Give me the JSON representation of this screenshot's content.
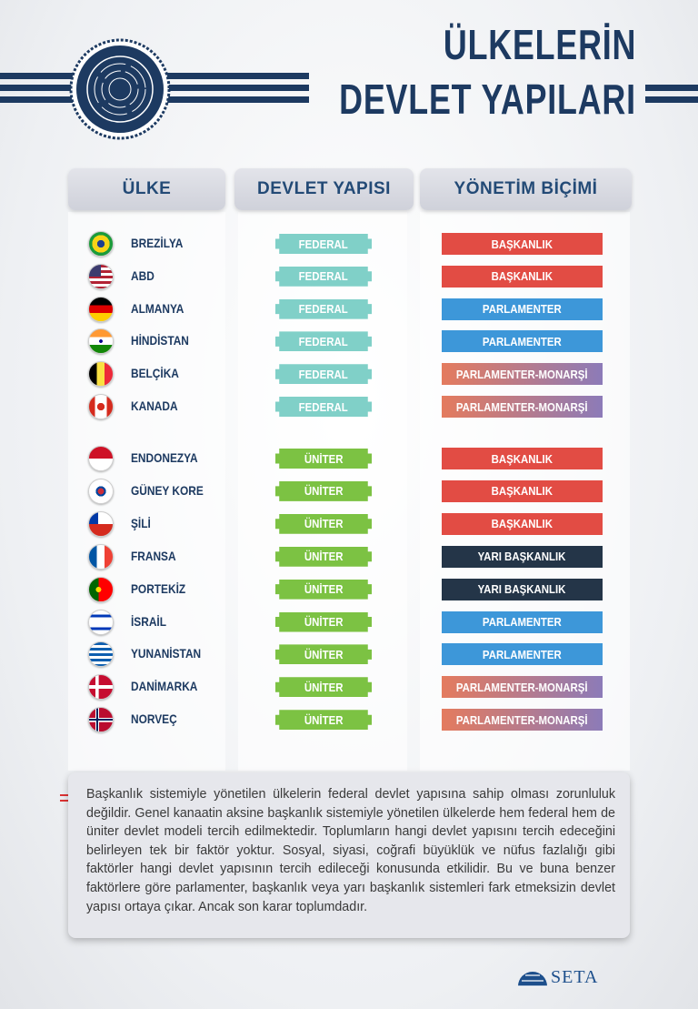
{
  "title": {
    "line1": "ÜLKELERİN",
    "line2": "DEVLET YAPILARI"
  },
  "header": [
    "ÜLKE",
    "DEVLET YAPISI",
    "YÖNETİM BİÇİMİ"
  ],
  "rows": [
    {
      "country": "BREZİLYA",
      "structure": "FEDERAL",
      "structure_color": "#80d0c8",
      "government": "BAŞKANLIK",
      "government_color": "#e24c44"
    },
    {
      "country": "ABD",
      "structure": "FEDERAL",
      "structure_color": "#80d0c8",
      "government": "BAŞKANLIK",
      "government_color": "#e24c44"
    },
    {
      "country": "ALMANYA",
      "structure": "FEDERAL",
      "structure_color": "#80d0c8",
      "government": "PARLAMENTER",
      "government_color": "#3d97d9"
    },
    {
      "country": "HİNDİSTAN",
      "structure": "FEDERAL",
      "structure_color": "#80d0c8",
      "government": "PARLAMENTER",
      "government_color": "#3d97d9"
    },
    {
      "country": "BELÇİKA",
      "structure": "FEDERAL",
      "structure_color": "#80d0c8",
      "government": "PARLAMENTER-MONARŞİ",
      "government_color": "linear-gradient(to right,#e47b5e,#8c7bb8)"
    },
    {
      "country": "KANADA",
      "structure": "FEDERAL",
      "structure_color": "#80d0c8",
      "government": "PARLAMENTER-MONARŞİ",
      "government_color": "linear-gradient(to right,#e47b5e,#8c7bb8)"
    },
    {
      "country": "ENDONEZYA",
      "structure": "ÜNİTER",
      "structure_color": "#7cc243",
      "government": "BAŞKANLIK",
      "government_color": "#e24c44"
    },
    {
      "country": "GÜNEY KORE",
      "structure": "ÜNİTER",
      "structure_color": "#7cc243",
      "government": "BAŞKANLIK",
      "government_color": "#e24c44"
    },
    {
      "country": "ŞİLİ",
      "structure": "ÜNİTER",
      "structure_color": "#7cc243",
      "government": "BAŞKANLIK",
      "government_color": "#e24c44"
    },
    {
      "country": "FRANSA",
      "structure": "ÜNİTER",
      "structure_color": "#7cc243",
      "government": "YARI BAŞKANLIK",
      "government_color": "#243548"
    },
    {
      "country": "PORTEKİZ",
      "structure": "ÜNİTER",
      "structure_color": "#7cc243",
      "government": "YARI BAŞKANLIK",
      "government_color": "#243548"
    },
    {
      "country": "İSRAİL",
      "structure": "ÜNİTER",
      "structure_color": "#7cc243",
      "government": "PARLAMENTER",
      "government_color": "#3d97d9"
    },
    {
      "country": "YUNANİSTAN",
      "structure": "ÜNİTER",
      "structure_color": "#7cc243",
      "government": "PARLAMENTER",
      "government_color": "#3d97d9"
    },
    {
      "country": "DANİMARKA",
      "structure": "ÜNİTER",
      "structure_color": "#7cc243",
      "government": "PARLAMENTER-MONARŞİ",
      "government_color": "linear-gradient(to right,#e47b5e,#8c7bb8)"
    },
    {
      "country": "NORVEÇ",
      "structure": "ÜNİTER",
      "structure_color": "#7cc243",
      "government": "PARLAMENTER-MONARŞİ",
      "government_color": "linear-gradient(to right,#e47b5e,#8c7bb8)"
    }
  ],
  "note": "Başkanlık sistemiyle yönetilen ülkelerin federal devlet yapısına sahip olması zorunluluk değildir. Genel kanaatin aksine başkanlık sistemiyle yönetilen ülkelerde hem federal hem de üniter devlet modeli tercih edilmektedir. Toplumların hangi devlet yapısını tercih edeceğini belirleyen tek bir faktör yoktur. Sosyal, siyasi, coğrafi büyüklük ve nüfus fazlalığı gibi faktörler hangi devlet yapısının tercih edileceği konusunda etkilidir. Bu ve buna benzer faktörlere göre parlamenter, başkanlık veya yarı başkanlık sistemleri fark etmeksizin devlet yapısı ortaya çıkar. Ancak son karar toplumdadır.",
  "logo": "SETA"
}
